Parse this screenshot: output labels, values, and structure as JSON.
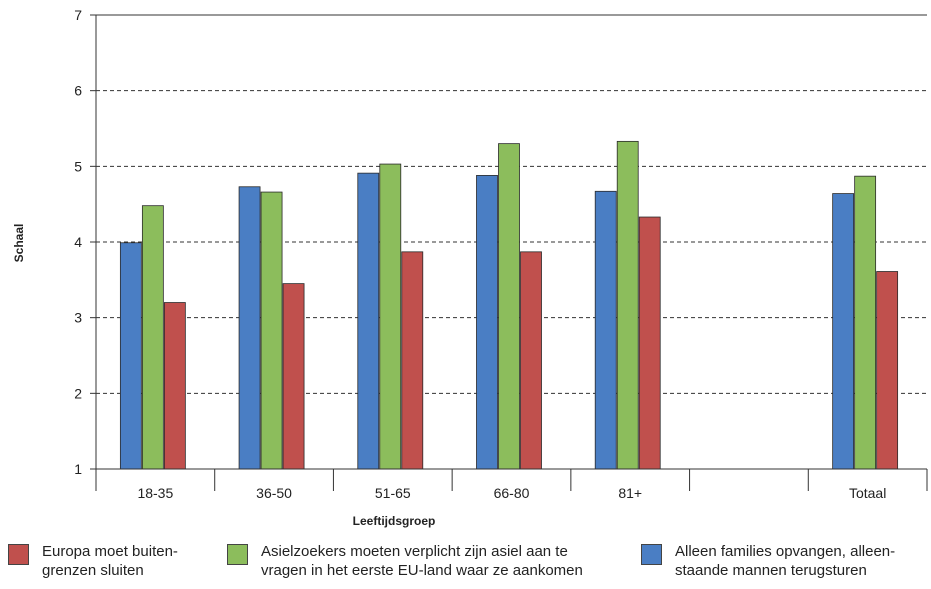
{
  "chart_data": {
    "type": "bar",
    "title": "",
    "xlabel": "Leeftijdsgroep",
    "ylabel": "Schaal",
    "ylim": [
      1,
      7
    ],
    "yticks": [
      1,
      2,
      3,
      4,
      5,
      6,
      7
    ],
    "grid": "horizontal dashed",
    "categories": [
      "18-35",
      "36-50",
      "51-65",
      "66-80",
      "81+",
      "",
      "Totaal"
    ],
    "series": [
      {
        "name": "Alleen families opvangen, alleen-staande mannen terugsturen",
        "color": "#4a7ec4",
        "values": [
          3.99,
          4.73,
          4.91,
          4.88,
          4.67,
          null,
          4.64
        ]
      },
      {
        "name": "Asielzoekers moeten verplicht zijn asiel aan te vragen in het eerste EU-land waar ze aankomen",
        "color": "#8cbd5c",
        "values": [
          4.48,
          4.66,
          5.03,
          5.3,
          5.33,
          null,
          4.87
        ]
      },
      {
        "name": "Europa moet buiten-grenzen sluiten",
        "color": "#c0504d",
        "values": [
          3.2,
          3.45,
          3.87,
          3.87,
          4.33,
          null,
          3.61
        ]
      }
    ]
  },
  "legend": [
    {
      "label_line1": "Europa moet buiten-",
      "label_line2": "grenzen sluiten",
      "color": "#c0504d",
      "icon": "red-swatch"
    },
    {
      "label_line1": "Asielzoekers moeten verplicht zijn asiel aan te",
      "label_line2": "vragen in het eerste EU-land waar ze aankomen",
      "color": "#8cbd5c",
      "icon": "green-swatch"
    },
    {
      "label_line1": "Alleen families opvangen, alleen-",
      "label_line2": "staande mannen terugsturen",
      "color": "#4a7ec4",
      "icon": "blue-swatch"
    }
  ]
}
